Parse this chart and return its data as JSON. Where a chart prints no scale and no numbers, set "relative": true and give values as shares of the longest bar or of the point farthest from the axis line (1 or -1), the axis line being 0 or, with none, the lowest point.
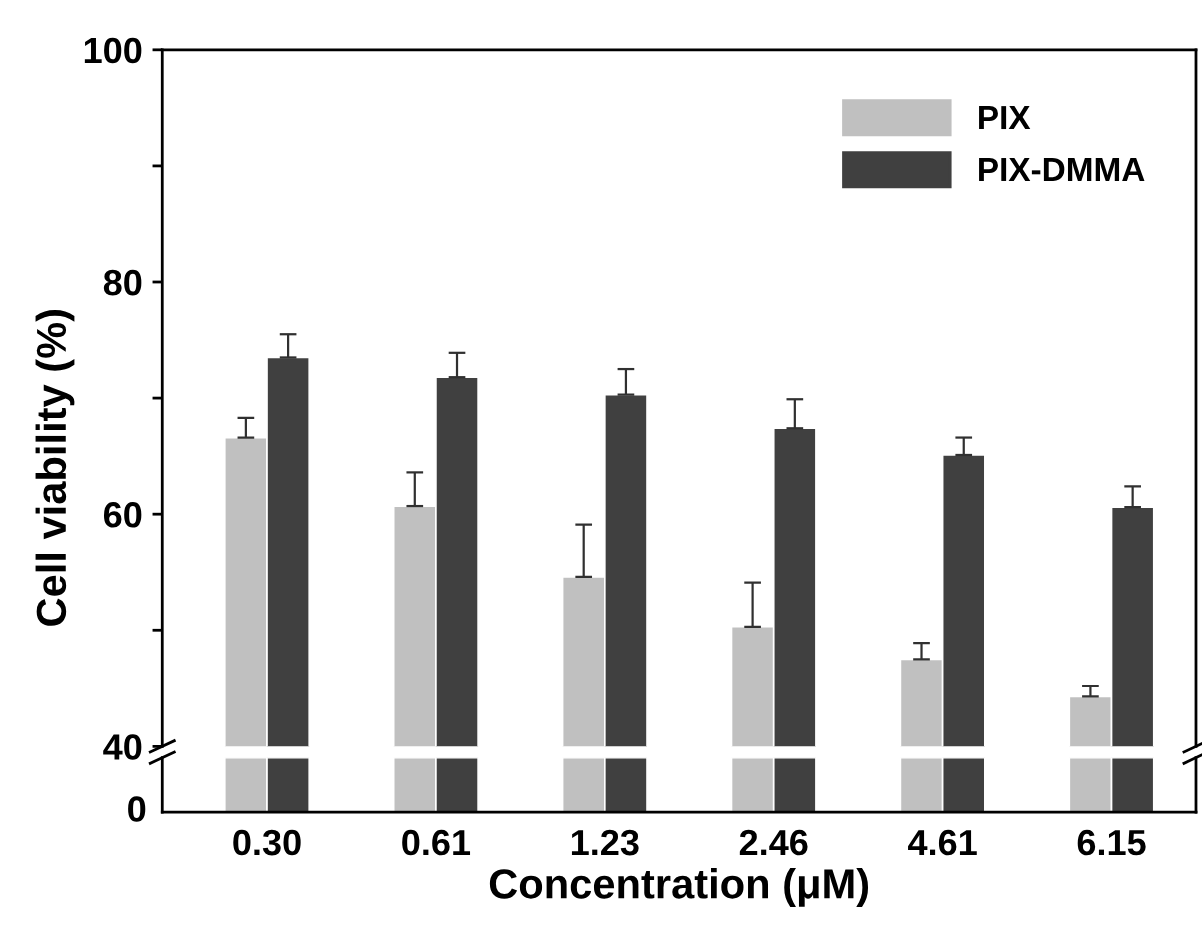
{
  "chart_data": [
    {
      "type": "bar",
      "ylabel": "Cell viability (%)",
      "categories": [
        "0.30",
        "0.61",
        "1.23",
        "2.46",
        "4.61",
        "6.15"
      ],
      "ylim": [
        40,
        100
      ],
      "yticks": [
        40,
        {
          "value": 50,
          "label": null
        },
        60,
        {
          "value": 70,
          "label": null
        },
        80,
        {
          "value": 90,
          "label": null
        },
        100
      ],
      "tick_labels": "y",
      "legend": "top right",
      "grid": false,
      "series": [
        {
          "name": "PIX",
          "color": "#c0c0c0",
          "values": [
            66.6,
            60.7,
            54.6,
            50.3,
            47.5,
            44.3
          ],
          "errors": [
            [
              66.6,
              68.3
            ],
            [
              60.7,
              63.6
            ],
            [
              54.6,
              59.1
            ],
            [
              50.3,
              54.1
            ],
            [
              47.5,
              48.9
            ],
            [
              44.3,
              45.2
            ]
          ]
        },
        {
          "name": "PIX-DMMA",
          "color": "#404040",
          "values": [
            73.5,
            71.8,
            70.3,
            67.4,
            65.1,
            60.6
          ],
          "errors": [
            [
              73.5,
              75.5
            ],
            [
              71.8,
              73.9
            ],
            [
              70.3,
              72.5
            ],
            [
              67.4,
              69.9
            ],
            [
              65.1,
              66.6
            ],
            [
              60.6,
              62.4
            ]
          ]
        }
      ]
    },
    {
      "type": "bar",
      "relative": true,
      "xlabel": "Concentration (μM)",
      "categories": [
        "0.30",
        "0.61",
        "1.23",
        "2.46",
        "4.61",
        "6.15"
      ],
      "annotations": [
        "0"
      ],
      "series": [
        {
          "color": "#c0c0c0",
          "values": [
            1,
            1,
            1,
            1,
            1,
            1
          ]
        },
        {
          "color": "#404040",
          "values": [
            1,
            1,
            1,
            1,
            1,
            1
          ]
        }
      ]
    }
  ]
}
